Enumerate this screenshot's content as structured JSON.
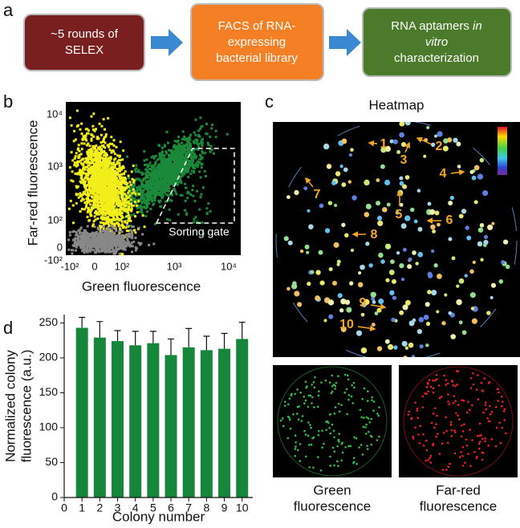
{
  "panel_labels": [
    "a",
    "b",
    "c",
    "d"
  ],
  "flow": {
    "boxes": [
      {
        "lines": [
          [
            {
              "text": "~5 rounds of"
            }
          ],
          [
            {
              "text": "SELEX"
            }
          ]
        ]
      },
      {
        "lines": [
          [
            {
              "text": "FACS of RNA-"
            }
          ],
          [
            {
              "text": "expressing"
            }
          ],
          [
            {
              "text": "bacterial library"
            }
          ]
        ]
      },
      {
        "lines": [
          [
            {
              "text": "RNA aptamers "
            },
            {
              "text": "in",
              "italic": true
            }
          ],
          [
            {
              "text": "vitro",
              "italic": true
            }
          ],
          [
            {
              "text": "characterization"
            }
          ]
        ]
      }
    ]
  },
  "flow_cytometry": {
    "xlabel": "Green fluorescence",
    "ylabel": "Far-red fluorescence",
    "xtick_labels": [
      "-10²",
      "0",
      "10²",
      "10³",
      "10⁴"
    ],
    "ytick_labels": [
      "10⁴",
      "10³",
      "10²",
      "0",
      "-10²"
    ],
    "gate_label": "Sorting gate"
  },
  "heatmap": {
    "title": "Heatmap",
    "colony_labels": [
      "1",
      "2",
      "3",
      "4",
      "5",
      "6",
      "7",
      "8",
      "9",
      "10"
    ],
    "captions": [
      [
        "Green",
        "fluorescence"
      ],
      [
        "Far-red",
        "fluorescence"
      ]
    ]
  },
  "chart_data": {
    "type": "bar",
    "xlabel": "Colony number",
    "ylabel_lines": [
      "Normalized colony",
      "fluorescence (a.u.)"
    ],
    "x": [
      1,
      2,
      3,
      4,
      5,
      6,
      7,
      8,
      9,
      10
    ],
    "values": [
      243,
      229,
      224,
      218,
      221,
      204,
      215,
      211,
      213,
      227
    ],
    "errors": [
      15,
      23,
      15,
      20,
      17,
      23,
      27,
      20,
      22,
      24
    ],
    "color": "#16873a",
    "xlim": [
      0,
      10.6
    ],
    "xticks": [
      0,
      1,
      2,
      3,
      4,
      5,
      6,
      7,
      8,
      9,
      10
    ],
    "ylim": [
      0,
      262
    ],
    "yticks": [
      0,
      50,
      100,
      150,
      200,
      250
    ]
  }
}
